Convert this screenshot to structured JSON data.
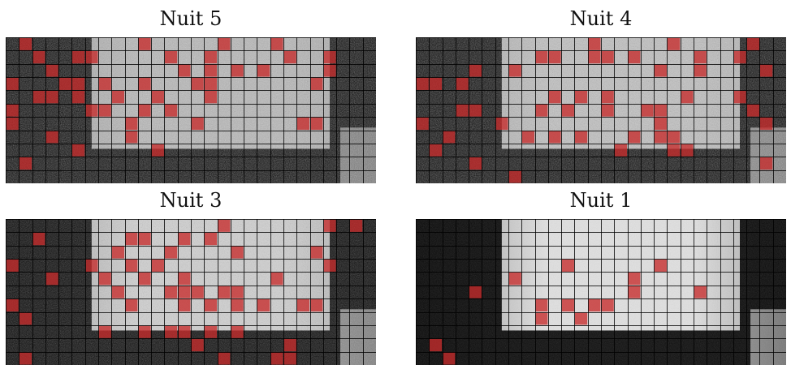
{
  "panels": [
    {
      "title": "Nuit 5",
      "brightness": 0.62,
      "noise": 1.0,
      "shadow": 0.0,
      "red": [
        [
          1,
          0
        ],
        [
          10,
          0
        ],
        [
          16,
          0
        ],
        [
          20,
          0
        ],
        [
          2,
          1
        ],
        [
          5,
          1
        ],
        [
          12,
          1
        ],
        [
          15,
          1
        ],
        [
          21,
          1
        ],
        [
          24,
          1
        ],
        [
          6,
          1
        ],
        [
          13,
          2
        ],
        [
          15,
          2
        ],
        [
          17,
          2
        ],
        [
          19,
          2
        ],
        [
          24,
          2
        ],
        [
          3,
          2
        ],
        [
          0,
          3
        ],
        [
          4,
          3
        ],
        [
          5,
          3
        ],
        [
          7,
          3
        ],
        [
          10,
          3
        ],
        [
          14,
          3
        ],
        [
          15,
          3
        ],
        [
          23,
          3
        ],
        [
          2,
          4
        ],
        [
          5,
          4
        ],
        [
          8,
          4
        ],
        [
          11,
          4
        ],
        [
          15,
          4
        ],
        [
          6,
          5
        ],
        [
          7,
          5
        ],
        [
          10,
          5
        ],
        [
          12,
          5
        ],
        [
          3,
          4
        ],
        [
          0,
          5
        ],
        [
          0,
          6
        ],
        [
          9,
          6
        ],
        [
          14,
          6
        ],
        [
          22,
          6
        ],
        [
          23,
          6
        ],
        [
          3,
          7
        ],
        [
          9,
          7
        ],
        [
          5,
          8
        ],
        [
          11,
          8
        ],
        [
          1,
          9
        ]
      ]
    },
    {
      "title": "Nuit 4",
      "brightness": 0.68,
      "noise": 1.0,
      "shadow": 0.0,
      "red": [
        [
          13,
          0
        ],
        [
          19,
          0
        ],
        [
          25,
          0
        ],
        [
          9,
          1
        ],
        [
          10,
          1
        ],
        [
          13,
          1
        ],
        [
          14,
          1
        ],
        [
          16,
          1
        ],
        [
          21,
          1
        ],
        [
          24,
          1
        ],
        [
          4,
          2
        ],
        [
          7,
          2
        ],
        [
          18,
          2
        ],
        [
          21,
          2
        ],
        [
          26,
          2
        ],
        [
          0,
          3
        ],
        [
          1,
          3
        ],
        [
          3,
          3
        ],
        [
          10,
          4
        ],
        [
          12,
          4
        ],
        [
          14,
          4
        ],
        [
          20,
          4
        ],
        [
          24,
          4
        ],
        [
          3,
          5
        ],
        [
          4,
          5
        ],
        [
          9,
          5
        ],
        [
          11,
          5
        ],
        [
          14,
          5
        ],
        [
          17,
          5
        ],
        [
          18,
          5
        ],
        [
          25,
          5
        ],
        [
          6,
          6
        ],
        [
          18,
          6
        ],
        [
          26,
          6
        ],
        [
          0,
          6
        ],
        [
          2,
          7
        ],
        [
          8,
          7
        ],
        [
          10,
          7
        ],
        [
          12,
          7
        ],
        [
          16,
          7
        ],
        [
          18,
          7
        ],
        [
          19,
          7
        ],
        [
          1,
          8
        ],
        [
          15,
          8
        ],
        [
          19,
          8
        ],
        [
          20,
          8
        ],
        [
          4,
          9
        ],
        [
          26,
          9
        ],
        [
          7,
          10
        ]
      ]
    },
    {
      "title": "Nuit 3",
      "brightness": 0.82,
      "noise": 0.75,
      "shadow": 0.25,
      "red": [
        [
          16,
          0
        ],
        [
          24,
          0
        ],
        [
          26,
          0
        ],
        [
          2,
          1
        ],
        [
          9,
          1
        ],
        [
          10,
          1
        ],
        [
          13,
          1
        ],
        [
          15,
          1
        ],
        [
          8,
          2
        ],
        [
          12,
          2
        ],
        [
          17,
          2
        ],
        [
          23,
          2
        ],
        [
          0,
          3
        ],
        [
          6,
          3
        ],
        [
          9,
          3
        ],
        [
          11,
          3
        ],
        [
          24,
          3
        ],
        [
          7,
          4
        ],
        [
          10,
          4
        ],
        [
          13,
          4
        ],
        [
          20,
          4
        ],
        [
          3,
          4
        ],
        [
          8,
          5
        ],
        [
          13,
          5
        ],
        [
          14,
          5
        ],
        [
          16,
          5
        ],
        [
          17,
          5
        ],
        [
          12,
          5
        ],
        [
          0,
          6
        ],
        [
          15,
          6
        ],
        [
          9,
          6
        ],
        [
          13,
          6
        ],
        [
          17,
          6
        ],
        [
          19,
          6
        ],
        [
          23,
          6
        ],
        [
          22,
          6
        ],
        [
          1,
          7
        ],
        [
          7,
          8
        ],
        [
          10,
          8
        ],
        [
          12,
          8
        ],
        [
          13,
          8
        ],
        [
          15,
          8
        ],
        [
          17,
          8
        ],
        [
          14,
          9
        ],
        [
          21,
          9
        ],
        [
          1,
          10
        ],
        [
          16,
          10
        ],
        [
          20,
          10
        ],
        [
          21,
          10
        ]
      ]
    },
    {
      "title": "Nuit 1",
      "brightness": 0.95,
      "noise": 0.35,
      "shadow": 0.55,
      "red": [
        [
          11,
          3
        ],
        [
          18,
          3
        ],
        [
          7,
          4
        ],
        [
          4,
          5
        ],
        [
          16,
          5
        ],
        [
          21,
          5
        ],
        [
          16,
          4
        ],
        [
          9,
          6
        ],
        [
          14,
          6
        ],
        [
          13,
          6
        ],
        [
          11,
          6
        ],
        [
          9,
          7
        ],
        [
          12,
          7
        ],
        [
          1,
          9
        ],
        [
          2,
          10
        ],
        [
          3,
          11
        ],
        [
          0,
          11
        ]
      ]
    }
  ],
  "grid": {
    "cols": 28,
    "rows": 11
  },
  "colors": {
    "highlight": "#c62b2b",
    "grid_line": "#000000",
    "dark_background": "#0e0e0e",
    "bright_area": "#d6d6d6"
  }
}
